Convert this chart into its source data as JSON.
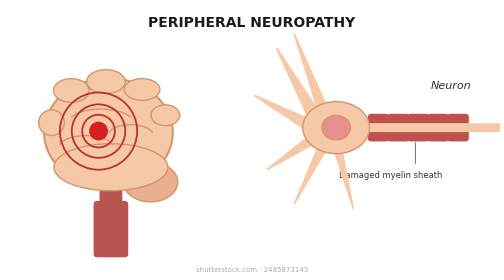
{
  "title": "PERIPHERAL NEUROPATHY",
  "title_fontsize": 10,
  "title_fontweight": "bold",
  "background_color": "#ffffff",
  "brain_color": "#f5c9a8",
  "brain_outline_color": "#d4956a",
  "brainstem_color": "#b85550",
  "cerebellum_color": "#e8b090",
  "concentric_color": "#c0302a",
  "red_dot_color": "#d42020",
  "neuron_body_color": "#f5c9a8",
  "neuron_nucleus_color": "#e89090",
  "myelin_color": "#c05050",
  "label_neuron": "Neuron",
  "label_myelin": "Damaged myelin sheath",
  "watermark": "shutterstock.com · 2485873143"
}
